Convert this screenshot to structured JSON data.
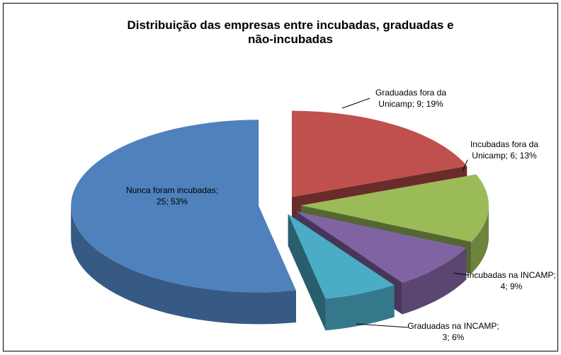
{
  "chart_data": {
    "type": "pie",
    "title": "Distribuição das empresas entre incubadas, graduadas e não-incubadas",
    "labels": [
      [
        "Graduadas fora da",
        "Unicamp; 9; 19%"
      ],
      [
        "Incubadas fora da",
        "Unicamp; 6; 13%"
      ],
      [
        "Incubadas na INCAMP;",
        "4; 9%"
      ],
      [
        "Graduadas na INCAMP;",
        "3; 6%"
      ],
      [
        "Nunca foram incubadas;",
        "25; 53%"
      ]
    ],
    "values": [
      9,
      6,
      4,
      3,
      25
    ],
    "percent": [
      19,
      13,
      9,
      6,
      53
    ],
    "colors": [
      "#c0504d",
      "#9bbb59",
      "#8064a2",
      "#4bacc6",
      "#4f81bd"
    ]
  }
}
